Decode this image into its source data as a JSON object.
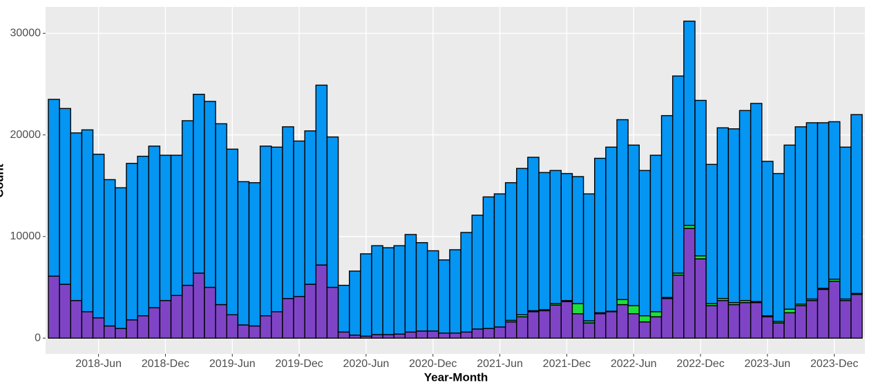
{
  "chart_data": {
    "type": "bar",
    "stacked": true,
    "x_label": "Year-Month",
    "y_label": "Count",
    "categories": [
      null,
      null,
      null,
      null,
      "2018-Jun",
      null,
      null,
      null,
      null,
      null,
      "2018-Dec",
      null,
      null,
      null,
      null,
      null,
      "2019-Jun",
      null,
      null,
      null,
      null,
      null,
      "2019-Dec",
      null,
      null,
      null,
      null,
      null,
      "2020-Jun",
      null,
      null,
      null,
      null,
      null,
      "2020-Dec",
      null,
      null,
      null,
      null,
      null,
      "2021-Jun",
      null,
      null,
      null,
      null,
      null,
      "2021-Dec",
      null,
      null,
      null,
      null,
      null,
      "2022-Jun",
      null,
      null,
      null,
      null,
      null,
      "2022-Dec",
      null,
      null,
      null,
      null,
      null,
      "2023-Jun",
      null,
      null,
      null,
      null,
      null,
      "2023-Dec",
      null,
      null
    ],
    "series": [
      {
        "color": "#7f44c6",
        "values": [
          6100,
          5300,
          3700,
          2600,
          2000,
          1200,
          950,
          1800,
          2200,
          3000,
          3700,
          4200,
          5200,
          6400,
          5000,
          3300,
          2300,
          1300,
          1200,
          2200,
          2600,
          3900,
          4100,
          5300,
          7200,
          5000,
          600,
          300,
          200,
          350,
          350,
          400,
          600,
          700,
          700,
          500,
          500,
          600,
          900,
          950,
          1100,
          1600,
          2100,
          2600,
          2700,
          3250,
          3600,
          2400,
          1500,
          2400,
          2600,
          3300,
          2400,
          1600,
          2100,
          3900,
          6200,
          10800,
          7800,
          3200,
          3700,
          3300,
          3500,
          3500,
          2100,
          1500,
          2500,
          3200,
          3700,
          4800,
          5600,
          3700,
          4300
        ]
      },
      {
        "color": "#1ee03c",
        "values": [
          0,
          0,
          0,
          0,
          0,
          0,
          0,
          0,
          0,
          0,
          0,
          0,
          0,
          0,
          0,
          0,
          0,
          0,
          0,
          0,
          0,
          0,
          0,
          0,
          0,
          0,
          0,
          0,
          0,
          0,
          0,
          0,
          0,
          0,
          0,
          0,
          0,
          0,
          0,
          0,
          0,
          150,
          200,
          100,
          100,
          150,
          100,
          1000,
          200,
          100,
          50,
          500,
          800,
          600,
          500,
          100,
          200,
          300,
          300,
          200,
          200,
          200,
          200,
          100,
          100,
          150,
          350,
          150,
          150,
          100,
          200,
          150,
          100
        ]
      },
      {
        "color": "#0595f2",
        "values": [
          17400,
          17300,
          16500,
          17900,
          16100,
          14400,
          13850,
          15400,
          15700,
          15900,
          14300,
          13800,
          16200,
          17600,
          18300,
          17800,
          16300,
          14100,
          14100,
          16700,
          16200,
          16900,
          15300,
          15100,
          17700,
          14800,
          4600,
          6300,
          8100,
          8750,
          8550,
          8700,
          9600,
          8700,
          7900,
          7200,
          8200,
          9800,
          11200,
          12950,
          13100,
          13550,
          14400,
          15100,
          13500,
          13100,
          12500,
          12500,
          12500,
          15200,
          16150,
          17700,
          15800,
          14300,
          15400,
          17900,
          19400,
          20100,
          15300,
          13700,
          16800,
          17100,
          18700,
          19500,
          15200,
          14550,
          16150,
          17450,
          17350,
          16300,
          15500,
          14950,
          17600
        ]
      }
    ],
    "ylim": [
      -1550,
      32600
    ],
    "yticks": [
      0,
      10000,
      20000,
      30000
    ],
    "grid": true
  }
}
